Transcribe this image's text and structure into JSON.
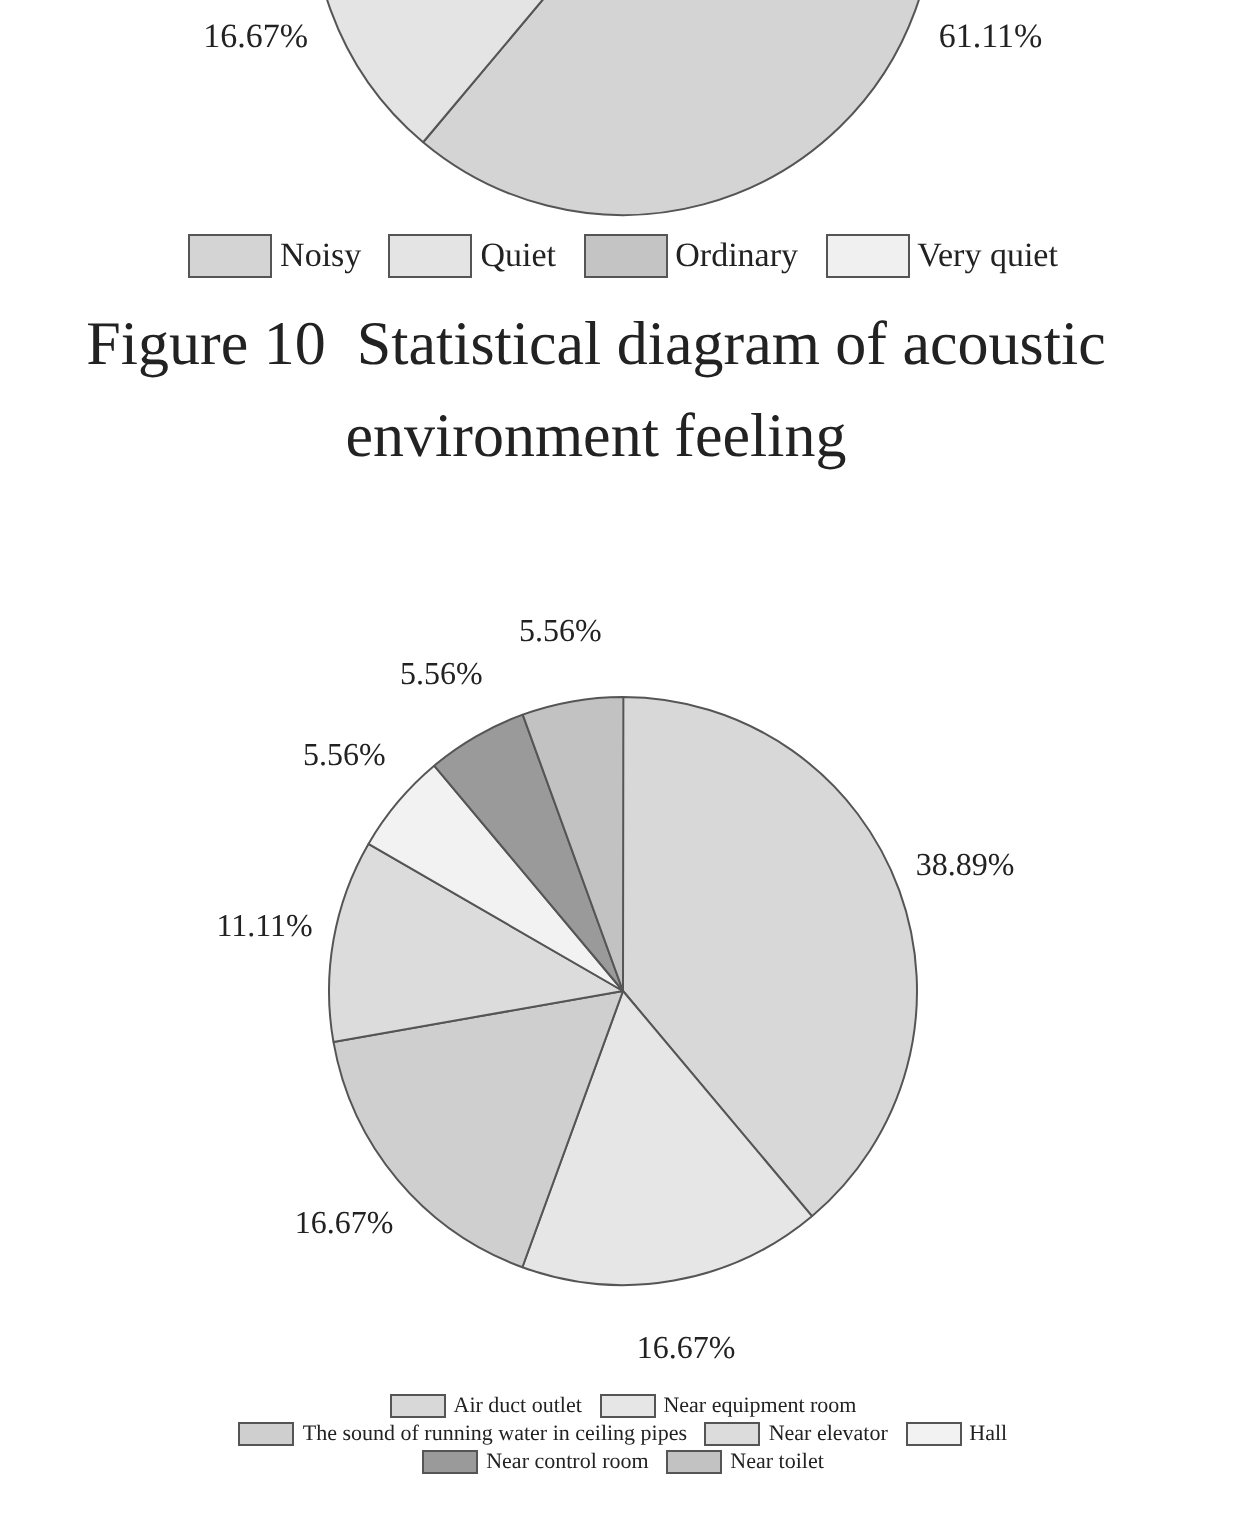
{
  "chart_data": [
    {
      "type": "pie",
      "title": "Figure 10  Statistical diagram of acoustic environment feeling",
      "categories": [
        "Noisy",
        "Quiet",
        "Ordinary",
        "Very quiet"
      ],
      "values": [
        61.11,
        16.67,
        null,
        null
      ],
      "value_labels": [
        "61.11%",
        "16.67%",
        null,
        null
      ],
      "colors": [
        "#d4d4d4",
        "#e4e4e4",
        "#c4c4c4",
        "#f0f0f0"
      ],
      "legend": "bottom"
    },
    {
      "type": "pie",
      "categories": [
        "Air duct outlet",
        "Near equipment room",
        "The sound of running water in ceiling pipes",
        "Near elevator",
        "Hall",
        "Near control room",
        "Near toilet"
      ],
      "values": [
        38.89,
        16.67,
        16.67,
        11.11,
        5.56,
        5.56,
        5.56
      ],
      "value_labels": [
        "38.89%",
        "16.67%",
        "16.67%",
        "11.11%",
        "5.56%",
        "5.56%",
        "5.56%"
      ],
      "colors": [
        "#d8d8d8",
        "#e6e6e6",
        "#cfcfcf",
        "#dcdcdc",
        "#f2f2f2",
        "#9a9a9a",
        "#c2c2c2"
      ],
      "legend": "bottom"
    }
  ]
}
